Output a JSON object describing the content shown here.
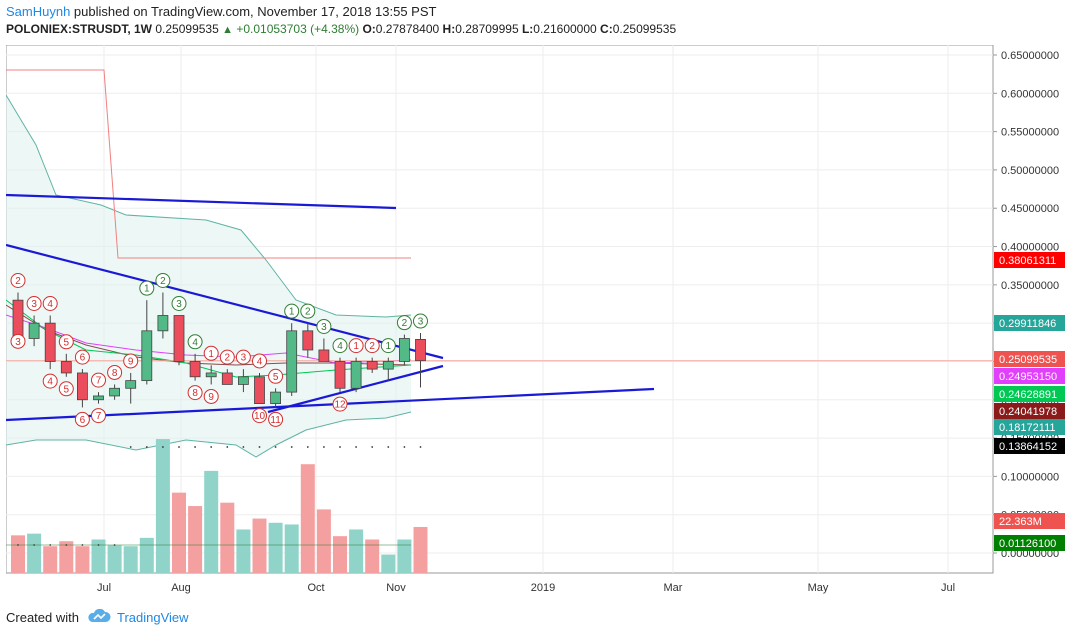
{
  "header": {
    "author": "SamHuynh",
    "published_text": " published on TradingView.com, November 17, 2018 13:55 PST"
  },
  "symbol_line": {
    "symbol": "POLONIEX:STRUSDT, 1W",
    "last": "0.25099535",
    "up_arrow": "▲",
    "change": "+0.01053703 (+4.38%)",
    "o_label": "O:",
    "o_value": "0.27878400",
    "h_label": "H:",
    "h_value": "0.28709995",
    "l_label": "L:",
    "l_value": "0.21600000",
    "c_label": "C:",
    "c_value": "0.25099535"
  },
  "price_axis": {
    "ticks": [
      "0.65000000",
      "0.60000000",
      "0.55000000",
      "0.50000000",
      "0.45000000",
      "0.40000000",
      "0.35000000",
      "0.30000000",
      "0.25000000",
      "0.20000000",
      "0.15000000",
      "0.10000000",
      "0.05000000",
      "0.00000000"
    ]
  },
  "time_axis": {
    "labels": [
      "Jul",
      "Aug",
      "Oct",
      "Nov",
      "2019",
      "Mar",
      "May",
      "Jul"
    ]
  },
  "price_badges": [
    {
      "text": "0.38061311",
      "color": "#ff0000"
    },
    {
      "text": "0.29911846",
      "color": "#26a69a"
    },
    {
      "text": "0.25099535",
      "color": "#ef5350"
    },
    {
      "text": "0.24953150",
      "color": "#e040fb"
    },
    {
      "text": "0.24628891",
      "color": "#00c853"
    },
    {
      "text": "0.24041978",
      "color": "#8b1a1a"
    },
    {
      "text": "0.18172111",
      "color": "#26a69a"
    },
    {
      "text": "0.13864152",
      "color": "#000000"
    },
    {
      "text": "22.363M",
      "color": "#ef5350"
    },
    {
      "text": "0.01126100",
      "color": "#008000"
    }
  ],
  "candles": [
    {
      "o": 0.33,
      "h": 0.34,
      "l": 0.27,
      "c": 0.28
    },
    {
      "o": 0.28,
      "h": 0.31,
      "l": 0.27,
      "c": 0.3
    },
    {
      "o": 0.3,
      "h": 0.31,
      "l": 0.24,
      "c": 0.25
    },
    {
      "o": 0.25,
      "h": 0.26,
      "l": 0.23,
      "c": 0.235
    },
    {
      "o": 0.235,
      "h": 0.24,
      "l": 0.19,
      "c": 0.2
    },
    {
      "o": 0.2,
      "h": 0.21,
      "l": 0.195,
      "c": 0.205
    },
    {
      "o": 0.205,
      "h": 0.22,
      "l": 0.2,
      "c": 0.215
    },
    {
      "o": 0.215,
      "h": 0.235,
      "l": 0.195,
      "c": 0.225
    },
    {
      "o": 0.225,
      "h": 0.33,
      "l": 0.22,
      "c": 0.29
    },
    {
      "o": 0.29,
      "h": 0.34,
      "l": 0.28,
      "c": 0.31
    },
    {
      "o": 0.31,
      "h": 0.31,
      "l": 0.245,
      "c": 0.25
    },
    {
      "o": 0.25,
      "h": 0.26,
      "l": 0.225,
      "c": 0.23
    },
    {
      "o": 0.23,
      "h": 0.245,
      "l": 0.22,
      "c": 0.235
    },
    {
      "o": 0.235,
      "h": 0.24,
      "l": 0.22,
      "c": 0.22
    },
    {
      "o": 0.22,
      "h": 0.24,
      "l": 0.21,
      "c": 0.23
    },
    {
      "o": 0.23,
      "h": 0.235,
      "l": 0.195,
      "c": 0.195
    },
    {
      "o": 0.195,
      "h": 0.215,
      "l": 0.19,
      "c": 0.21
    },
    {
      "o": 0.21,
      "h": 0.3,
      "l": 0.205,
      "c": 0.29
    },
    {
      "o": 0.29,
      "h": 0.3,
      "l": 0.255,
      "c": 0.265
    },
    {
      "o": 0.265,
      "h": 0.28,
      "l": 0.25,
      "c": 0.25
    },
    {
      "o": 0.25,
      "h": 0.255,
      "l": 0.21,
      "c": 0.215
    },
    {
      "o": 0.215,
      "h": 0.255,
      "l": 0.21,
      "c": 0.25
    },
    {
      "o": 0.25,
      "h": 0.255,
      "l": 0.235,
      "c": 0.24
    },
    {
      "o": 0.24,
      "h": 0.255,
      "l": 0.225,
      "c": 0.25
    },
    {
      "o": 0.25,
      "h": 0.285,
      "l": 0.245,
      "c": 0.28
    },
    {
      "o": 0.2788,
      "h": 0.2871,
      "l": 0.216,
      "c": 0.251
    }
  ],
  "volumes": [
    0.045,
    0.047,
    0.032,
    0.038,
    0.032,
    0.04,
    0.033,
    0.032,
    0.042,
    0.16,
    0.096,
    0.08,
    0.122,
    0.084,
    0.052,
    0.065,
    0.06,
    0.058,
    0.13,
    0.076,
    0.044,
    0.052,
    0.04,
    0.022,
    0.04,
    0.055
  ],
  "td_labels": [
    {
      "i": 0,
      "t": "2",
      "side": "top",
      "color": "red"
    },
    {
      "i": 1,
      "t": "3",
      "side": "top",
      "color": "red"
    },
    {
      "i": 2,
      "t": "4",
      "side": "top",
      "color": "red"
    },
    {
      "i": 2,
      "t": "4",
      "side": "bottom",
      "color": "red"
    },
    {
      "i": 3,
      "t": "5",
      "side": "top",
      "color": "red"
    },
    {
      "i": 4,
      "t": "6",
      "side": "top",
      "color": "red"
    },
    {
      "i": 5,
      "t": "7",
      "side": "top",
      "color": "red"
    },
    {
      "i": 6,
      "t": "8",
      "side": "top",
      "color": "red"
    },
    {
      "i": 7,
      "t": "9",
      "side": "top",
      "color": "red"
    },
    {
      "i": 3,
      "t": "5",
      "side": "bottom",
      "color": "red"
    },
    {
      "i": 4,
      "t": "6",
      "side": "bottom",
      "color": "red"
    },
    {
      "i": 5,
      "t": "7",
      "side": "bottom",
      "color": "red"
    },
    {
      "i": 8,
      "t": "1",
      "side": "top",
      "color": "green"
    },
    {
      "i": 9,
      "t": "2",
      "side": "top",
      "color": "green"
    },
    {
      "i": 10,
      "t": "3",
      "side": "top",
      "color": "green"
    },
    {
      "i": 11,
      "t": "4",
      "side": "top",
      "color": "green"
    },
    {
      "i": 11,
      "t": "8",
      "side": "bottom",
      "color": "red"
    },
    {
      "i": 12,
      "t": "9",
      "side": "bottom",
      "color": "red"
    },
    {
      "i": 12,
      "t": "1",
      "side": "top",
      "color": "red"
    },
    {
      "i": 13,
      "t": "2",
      "side": "top",
      "color": "red"
    },
    {
      "i": 14,
      "t": "3",
      "side": "top",
      "color": "red"
    },
    {
      "i": 15,
      "t": "4",
      "side": "top",
      "color": "red"
    },
    {
      "i": 16,
      "t": "5",
      "side": "top",
      "color": "red"
    },
    {
      "i": 15,
      "t": "10",
      "side": "bottom",
      "color": "red"
    },
    {
      "i": 16,
      "t": "11",
      "side": "bottom",
      "color": "red"
    },
    {
      "i": 17,
      "t": "1",
      "side": "top",
      "color": "green"
    },
    {
      "i": 18,
      "t": "2",
      "side": "top",
      "color": "green"
    },
    {
      "i": 19,
      "t": "3",
      "side": "top",
      "color": "green"
    },
    {
      "i": 20,
      "t": "4",
      "side": "top",
      "color": "green"
    },
    {
      "i": 21,
      "t": "1",
      "side": "top",
      "color": "red"
    },
    {
      "i": 22,
      "t": "2",
      "side": "top",
      "color": "red"
    },
    {
      "i": 23,
      "t": "1",
      "side": "top",
      "color": "green"
    },
    {
      "i": 24,
      "t": "2",
      "side": "top",
      "color": "green"
    },
    {
      "i": 25,
      "t": "3",
      "side": "top",
      "color": "green"
    },
    {
      "i": 20,
      "t": "12",
      "side": "bottom",
      "color": "red"
    },
    {
      "i": 0,
      "t": "3",
      "side": "mid",
      "color": "red"
    }
  ],
  "colors": {
    "up": "#53b987",
    "down": "#eb4d5c",
    "vol_up": "#8fd3c9",
    "vol_down": "#f5a0a0",
    "trendline": "#1a1ad6",
    "grid": "#eeeeee",
    "band": "#5fb3a5"
  },
  "footer": {
    "created_with": "Created with",
    "brand": "TradingView"
  }
}
